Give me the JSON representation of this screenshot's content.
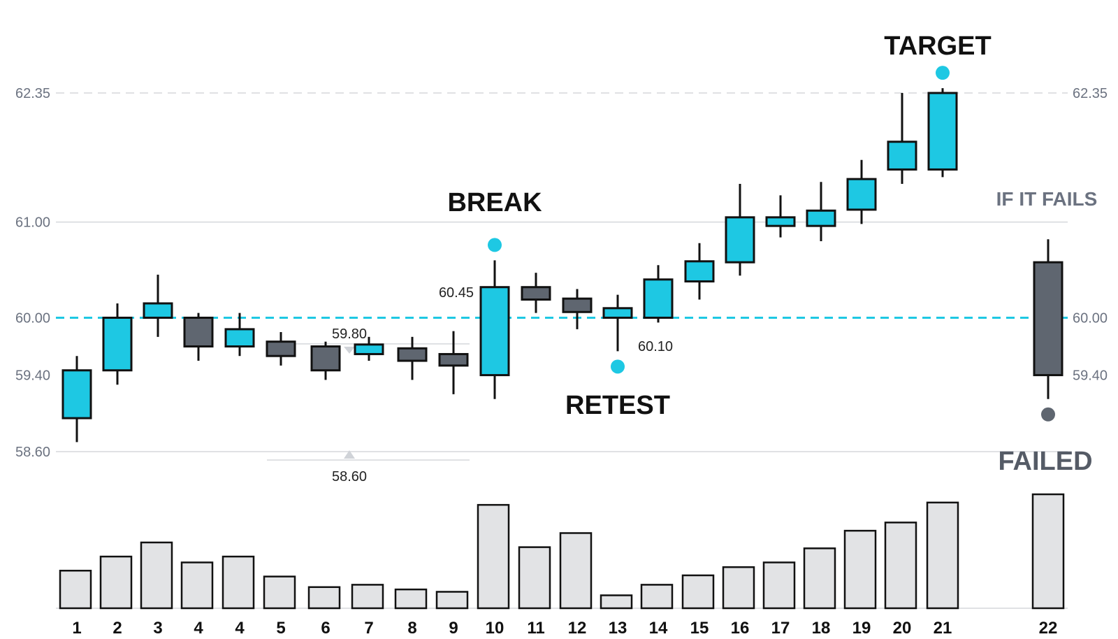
{
  "colors": {
    "up": "#1ec8e3",
    "down": "#5f6670",
    "outline": "#111111",
    "volume": "#e2e3e5",
    "level_line": "#1ec8e3",
    "grid": "#d5d7db",
    "marker_up": "#1ec8e3",
    "marker_fail": "#5f6670"
  },
  "chart_data": {
    "type": "candlestick",
    "y_ticks": [
      {
        "value": 58.6,
        "label": "58.60"
      },
      {
        "value": 59.4,
        "label": "59.40"
      },
      {
        "value": 60.0,
        "label": "60.00"
      },
      {
        "value": 61.0,
        "label": "61.00"
      },
      {
        "value": 62.35,
        "label": "62.35"
      }
    ],
    "right_ticks": [
      {
        "value": 59.4,
        "label": "59.40"
      },
      {
        "value": 60.0,
        "label": "60.00"
      },
      {
        "value": 62.35,
        "label": "62.35"
      }
    ],
    "ylim": [
      58.4,
      63.2
    ],
    "key_level": 60.0,
    "target_level": 62.35,
    "candles": [
      {
        "label": "1",
        "open": 58.95,
        "close": 59.45,
        "high": 59.6,
        "low": 58.7
      },
      {
        "label": "2",
        "open": 59.45,
        "close": 60.0,
        "high": 60.15,
        "low": 59.3
      },
      {
        "label": "3",
        "open": 60.0,
        "close": 60.15,
        "high": 60.45,
        "low": 59.8
      },
      {
        "label": "4",
        "open": 60.0,
        "close": 59.7,
        "high": 60.05,
        "low": 59.55
      },
      {
        "label": "4",
        "open": 59.7,
        "close": 59.88,
        "high": 60.05,
        "low": 59.6
      },
      {
        "label": "5",
        "open": 59.75,
        "close": 59.6,
        "high": 59.85,
        "low": 59.5
      },
      {
        "label": "6",
        "open": 59.7,
        "close": 59.45,
        "high": 59.75,
        "low": 59.35
      },
      {
        "label": "7",
        "open": 59.62,
        "close": 59.72,
        "high": 59.8,
        "low": 59.55
      },
      {
        "label": "8",
        "open": 59.68,
        "close": 59.55,
        "high": 59.8,
        "low": 59.35
      },
      {
        "label": "9",
        "open": 59.62,
        "close": 59.5,
        "high": 59.86,
        "low": 59.2
      },
      {
        "label": "10",
        "open": 59.4,
        "close": 60.32,
        "high": 60.6,
        "low": 59.15
      },
      {
        "label": "11",
        "open": 60.32,
        "close": 60.19,
        "high": 60.47,
        "low": 60.05
      },
      {
        "label": "12",
        "open": 60.2,
        "close": 60.06,
        "high": 60.3,
        "low": 59.88
      },
      {
        "label": "13",
        "open": 60.0,
        "close": 60.1,
        "high": 60.24,
        "low": 59.65
      },
      {
        "label": "14",
        "open": 60.0,
        "close": 60.4,
        "high": 60.55,
        "low": 59.95
      },
      {
        "label": "15",
        "open": 60.38,
        "close": 60.59,
        "high": 60.78,
        "low": 60.19
      },
      {
        "label": "16",
        "open": 60.58,
        "close": 61.05,
        "high": 61.4,
        "low": 60.44
      },
      {
        "label": "17",
        "open": 60.96,
        "close": 61.05,
        "high": 61.28,
        "low": 60.84
      },
      {
        "label": "18",
        "open": 60.96,
        "close": 61.12,
        "high": 61.42,
        "low": 60.8
      },
      {
        "label": "19",
        "open": 61.13,
        "close": 61.45,
        "high": 61.65,
        "low": 60.98
      },
      {
        "label": "20",
        "open": 61.55,
        "close": 61.84,
        "high": 62.35,
        "low": 61.4
      },
      {
        "label": "21",
        "open": 61.55,
        "close": 62.35,
        "high": 62.4,
        "low": 61.47
      },
      {
        "label": "22",
        "open": 60.58,
        "close": 59.4,
        "high": 60.82,
        "low": 59.15
      }
    ],
    "volume": [
      0.32,
      0.44,
      0.56,
      0.39,
      0.44,
      0.27,
      0.18,
      0.2,
      0.16,
      0.14,
      0.88,
      0.52,
      0.64,
      0.11,
      0.2,
      0.28,
      0.35,
      0.39,
      0.51,
      0.66,
      0.73,
      0.9,
      0.97
    ],
    "range_box": {
      "top_label": "59.80",
      "bottom_label": "58.60",
      "top": 59.8,
      "bottom": 58.6
    },
    "annotations": {
      "break_label": "BREAK",
      "break_price": "60.45",
      "retest_label": "RETEST",
      "retest_price": "60.10",
      "target_label": "TARGET",
      "fail_header": "IF IT FAILS",
      "failed_label": "FAILED"
    }
  }
}
